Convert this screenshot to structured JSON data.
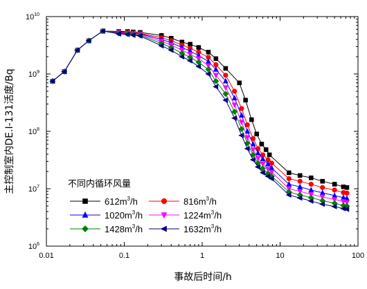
{
  "chart_data": {
    "type": "line",
    "xlabel": "事故后时间/h",
    "ylabel": "主控制室内DE.I-131活度/Bq",
    "x_scale": "log",
    "y_scale": "log",
    "xlim": [
      0.01,
      100
    ],
    "ylim": [
      1000000,
      10000000000
    ],
    "x_ticks": [
      {
        "value": 0.01,
        "label": "0.01"
      },
      {
        "value": 0.1,
        "label": "0.1"
      },
      {
        "value": 1,
        "label": "1"
      },
      {
        "value": 10,
        "label": "10"
      },
      {
        "value": 100,
        "label": "100"
      }
    ],
    "y_ticks": [
      {
        "value": 1000000,
        "base": "10",
        "exp": "6"
      },
      {
        "value": 10000000,
        "base": "10",
        "exp": "7"
      },
      {
        "value": 100000000,
        "base": "10",
        "exp": "8"
      },
      {
        "value": 1000000000,
        "base": "10",
        "exp": "9"
      },
      {
        "value": 10000000000,
        "base": "10",
        "exp": "10"
      }
    ],
    "grid": false,
    "legend": {
      "title": "不同内循环风量",
      "placement": "bottom-left",
      "unit_prefix": "m",
      "unit_sup": "3",
      "unit_suffix": "/h"
    },
    "series": [
      {
        "name": "612",
        "color": "#000000",
        "marker": "square",
        "points": [
          [
            0.012,
            750000000.0
          ],
          [
            0.017,
            1100000000.0
          ],
          [
            0.025,
            2600000000.0
          ],
          [
            0.035,
            3800000000.0
          ],
          [
            0.053,
            5600000000.0
          ],
          [
            0.085,
            5500000000.0
          ],
          [
            0.11,
            5500000000.0
          ],
          [
            0.13,
            5400000000.0
          ],
          [
            0.16,
            5300000000.0
          ],
          [
            0.3,
            4700000000.0
          ],
          [
            0.4,
            4200000000.0
          ],
          [
            0.55,
            3600000000.0
          ],
          [
            0.7,
            3300000000.0
          ],
          [
            0.9,
            2900000000.0
          ],
          [
            1.2,
            2400000000.0
          ],
          [
            1.5,
            1850000000.0
          ],
          [
            2.0,
            1250000000.0
          ],
          [
            3.0,
            700000000.0
          ],
          [
            3.6,
            350000000.0
          ],
          [
            4.3,
            160000000.0
          ],
          [
            5.0,
            90000000.0
          ],
          [
            5.8,
            60000000.0
          ],
          [
            6.6,
            48000000.0
          ],
          [
            7.3,
            39000000.0
          ],
          [
            13,
            19000000.0
          ],
          [
            18,
            17000000.0
          ],
          [
            25,
            15500000.0
          ],
          [
            35,
            13500000.0
          ],
          [
            50,
            12000000.0
          ],
          [
            65,
            10800000.0
          ],
          [
            72,
            10500000.0
          ]
        ]
      },
      {
        "name": "816",
        "color": "#ff0000",
        "marker": "circle",
        "points": [
          [
            0.012,
            750000000.0
          ],
          [
            0.017,
            1100000000.0
          ],
          [
            0.025,
            2600000000.0
          ],
          [
            0.035,
            3800000000.0
          ],
          [
            0.053,
            5600000000.0
          ],
          [
            0.085,
            5400000000.0
          ],
          [
            0.11,
            5300000000.0
          ],
          [
            0.13,
            5200000000.0
          ],
          [
            0.16,
            5100000000.0
          ],
          [
            0.3,
            4300000000.0
          ],
          [
            0.4,
            3800000000.0
          ],
          [
            0.55,
            3200000000.0
          ],
          [
            0.7,
            2800000000.0
          ],
          [
            0.9,
            2400000000.0
          ],
          [
            1.2,
            1950000000.0
          ],
          [
            1.5,
            1450000000.0
          ],
          [
            2.0,
            950000000.0
          ],
          [
            2.6,
            500000000.0
          ],
          [
            3.2,
            250000000.0
          ],
          [
            3.8,
            130000000.0
          ],
          [
            4.5,
            75000000.0
          ],
          [
            5.2,
            50000000.0
          ],
          [
            6.0,
            39000000.0
          ],
          [
            7.0,
            32000000.0
          ],
          [
            7.8,
            28000000.0
          ],
          [
            13,
            15000000.0
          ],
          [
            18,
            13500000.0
          ],
          [
            25,
            12000000.0
          ],
          [
            35,
            10500000.0
          ],
          [
            50,
            9500000.0
          ],
          [
            65,
            8600000.0
          ],
          [
            72,
            8400000.0
          ]
        ]
      },
      {
        "name": "1020",
        "color": "#0000ff",
        "marker": "triangle-up",
        "points": [
          [
            0.012,
            750000000.0
          ],
          [
            0.017,
            1100000000.0
          ],
          [
            0.025,
            2600000000.0
          ],
          [
            0.035,
            3800000000.0
          ],
          [
            0.053,
            5600000000.0
          ],
          [
            0.085,
            5300000000.0
          ],
          [
            0.11,
            5200000000.0
          ],
          [
            0.13,
            5100000000.0
          ],
          [
            0.16,
            5000000000.0
          ],
          [
            0.3,
            4000000000.0
          ],
          [
            0.4,
            3500000000.0
          ],
          [
            0.55,
            2900000000.0
          ],
          [
            0.7,
            2500000000.0
          ],
          [
            0.9,
            2100000000.0
          ],
          [
            1.2,
            1650000000.0
          ],
          [
            1.5,
            1200000000.0
          ],
          [
            2.0,
            750000000.0
          ],
          [
            2.6,
            380000000.0
          ],
          [
            3.2,
            190000000.0
          ],
          [
            3.8,
            100000000.0
          ],
          [
            4.5,
            60000000.0
          ],
          [
            5.2,
            42000000.0
          ],
          [
            6.0,
            33000000.0
          ],
          [
            7.0,
            27000000.0
          ],
          [
            7.8,
            23000000.0
          ],
          [
            13,
            12000000.0
          ],
          [
            18,
            10800000.0
          ],
          [
            25,
            9500000.0
          ],
          [
            35,
            8500000.0
          ],
          [
            50,
            7600000.0
          ],
          [
            65,
            7000000.0
          ],
          [
            72,
            6800000.0
          ]
        ]
      },
      {
        "name": "1224",
        "color": "#ff00ff",
        "marker": "triangle-down",
        "points": [
          [
            0.012,
            750000000.0
          ],
          [
            0.017,
            1100000000.0
          ],
          [
            0.025,
            2600000000.0
          ],
          [
            0.035,
            3800000000.0
          ],
          [
            0.053,
            5600000000.0
          ],
          [
            0.085,
            5200000000.0
          ],
          [
            0.11,
            5100000000.0
          ],
          [
            0.13,
            5000000000.0
          ],
          [
            0.16,
            4900000000.0
          ],
          [
            0.3,
            3700000000.0
          ],
          [
            0.4,
            3200000000.0
          ],
          [
            0.55,
            2600000000.0
          ],
          [
            0.7,
            2200000000.0
          ],
          [
            0.9,
            1850000000.0
          ],
          [
            1.2,
            1400000000.0
          ],
          [
            1.5,
            950000000.0
          ],
          [
            2.0,
            580000000.0
          ],
          [
            2.6,
            290000000.0
          ],
          [
            3.2,
            145000000.0
          ],
          [
            3.8,
            78000000.0
          ],
          [
            4.5,
            48000000.0
          ],
          [
            5.2,
            34000000.0
          ],
          [
            6.0,
            27000000.0
          ],
          [
            7.0,
            22000000.0
          ],
          [
            7.8,
            19500000.0
          ],
          [
            13,
            10000000.0
          ],
          [
            18,
            9000000.0
          ],
          [
            25,
            8000000.0
          ],
          [
            35,
            7200000.0
          ],
          [
            50,
            6500000.0
          ],
          [
            65,
            6000000.0
          ],
          [
            72,
            5800000.0
          ]
        ]
      },
      {
        "name": "1428",
        "color": "#008000",
        "marker": "diamond",
        "points": [
          [
            0.012,
            750000000.0
          ],
          [
            0.017,
            1100000000.0
          ],
          [
            0.025,
            2600000000.0
          ],
          [
            0.035,
            3800000000.0
          ],
          [
            0.053,
            5600000000.0
          ],
          [
            0.085,
            5100000000.0
          ],
          [
            0.11,
            5000000000.0
          ],
          [
            0.13,
            4900000000.0
          ],
          [
            0.16,
            4750000000.0
          ],
          [
            0.3,
            3400000000.0
          ],
          [
            0.4,
            2900000000.0
          ],
          [
            0.55,
            2300000000.0
          ],
          [
            0.7,
            1950000000.0
          ],
          [
            0.9,
            1600000000.0
          ],
          [
            1.2,
            1200000000.0
          ],
          [
            1.5,
            750000000.0
          ],
          [
            2.0,
            450000000.0
          ],
          [
            2.6,
            220000000.0
          ],
          [
            3.2,
            110000000.0
          ],
          [
            3.8,
            62000000.0
          ],
          [
            4.5,
            39000000.0
          ],
          [
            5.2,
            28000000.0
          ],
          [
            6.0,
            22500000.0
          ],
          [
            7.0,
            18500000.0
          ],
          [
            7.8,
            16500000.0
          ],
          [
            13,
            8800000.0
          ],
          [
            18,
            7800000.0
          ],
          [
            25,
            7000000.0
          ],
          [
            35,
            6200000.0
          ],
          [
            50,
            5600000.0
          ],
          [
            65,
            5100000.0
          ],
          [
            72,
            5000000.0
          ]
        ]
      },
      {
        "name": "1632",
        "color": "#000080",
        "marker": "triangle-left",
        "points": [
          [
            0.012,
            750000000.0
          ],
          [
            0.017,
            1100000000.0
          ],
          [
            0.025,
            2600000000.0
          ],
          [
            0.035,
            3800000000.0
          ],
          [
            0.053,
            5600000000.0
          ],
          [
            0.085,
            5000000000.0
          ],
          [
            0.11,
            4900000000.0
          ],
          [
            0.13,
            4750000000.0
          ],
          [
            0.16,
            4600000000.0
          ],
          [
            0.3,
            3100000000.0
          ],
          [
            0.4,
            2600000000.0
          ],
          [
            0.55,
            2000000000.0
          ],
          [
            0.7,
            1700000000.0
          ],
          [
            0.9,
            1350000000.0
          ],
          [
            1.2,
            1000000000.0
          ],
          [
            1.5,
            600000000.0
          ],
          [
            2.0,
            350000000.0
          ],
          [
            2.6,
            170000000.0
          ],
          [
            3.2,
            85000000.0
          ],
          [
            3.8,
            50000000.0
          ],
          [
            4.5,
            32000000.0
          ],
          [
            5.2,
            24000000.0
          ],
          [
            6.0,
            19000000.0
          ],
          [
            7.0,
            16500000.0
          ],
          [
            7.8,
            15000000.0
          ],
          [
            13,
            7800000.0
          ],
          [
            18,
            6900000.0
          ],
          [
            25,
            6100000.0
          ],
          [
            35,
            5400000.0
          ],
          [
            50,
            4900000.0
          ],
          [
            65,
            4500000.0
          ],
          [
            72,
            4400000.0
          ]
        ]
      }
    ]
  }
}
